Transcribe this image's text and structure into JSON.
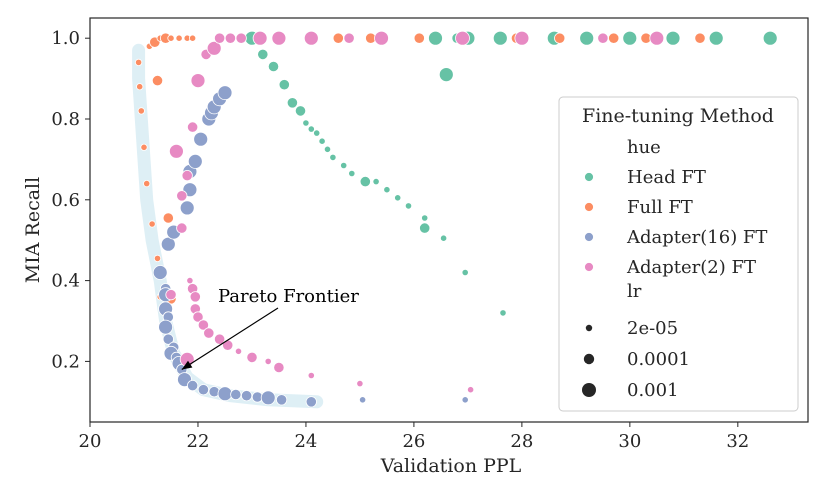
{
  "chart_data": {
    "type": "scatter",
    "title": "",
    "xlabel": "Validation PPL",
    "ylabel": "MIA Recall",
    "xlim": [
      20,
      33.3
    ],
    "ylim": [
      0.05,
      1.05
    ],
    "x_ticks": [
      20,
      22,
      24,
      26,
      28,
      30,
      32
    ],
    "y_ticks": [
      0.2,
      0.4,
      0.6,
      0.8,
      1.0
    ],
    "x_tick_labels": [
      "20",
      "22",
      "24",
      "26",
      "28",
      "30",
      "32"
    ],
    "y_tick_labels": [
      "0.2",
      "0.4",
      "0.6",
      "0.8",
      "1.0"
    ],
    "grid": false,
    "legend": {
      "title": "Fine-tuning Method",
      "position": "right",
      "hue_header": "hue",
      "size_header": "lr",
      "hue_entries": [
        {
          "label": "Head FT",
          "color": "#66c2a5"
        },
        {
          "label": "Full FT",
          "color": "#fc8d62"
        },
        {
          "label": "Adapter(16) FT",
          "color": "#8da0cb"
        },
        {
          "label": "Adapter(2) FT",
          "color": "#e78ac3"
        }
      ],
      "size_entries": [
        {
          "label": "2e-05",
          "lr": "2e-05"
        },
        {
          "label": "0.0001",
          "lr": "0.0001"
        },
        {
          "label": "0.001",
          "lr": "0.001"
        }
      ]
    },
    "annotation": {
      "text": "Pareto Frontier",
      "x": 21.7,
      "y": 0.18
    },
    "frontier": [
      [
        20.9,
        0.97
      ],
      [
        20.9,
        0.9
      ],
      [
        20.95,
        0.8
      ],
      [
        21.0,
        0.7
      ],
      [
        21.05,
        0.6
      ],
      [
        21.15,
        0.5
      ],
      [
        21.3,
        0.4
      ],
      [
        21.4,
        0.3
      ],
      [
        21.55,
        0.22
      ],
      [
        21.8,
        0.16
      ],
      [
        22.1,
        0.13
      ],
      [
        22.6,
        0.115
      ],
      [
        23.3,
        0.105
      ],
      [
        24.2,
        0.1
      ]
    ],
    "series": [
      {
        "name": "Head FT",
        "color": "#66c2a5",
        "points": [
          [
            23.0,
            1.0,
            "0.001"
          ],
          [
            23.2,
            0.96,
            "0.0001"
          ],
          [
            23.4,
            0.93,
            "0.0001"
          ],
          [
            23.6,
            0.885,
            "0.0001"
          ],
          [
            23.75,
            0.84,
            "0.0001"
          ],
          [
            23.9,
            0.82,
            "0.0001"
          ],
          [
            24.0,
            0.79,
            "2e-05"
          ],
          [
            24.1,
            0.775,
            "2e-05"
          ],
          [
            24.2,
            0.765,
            "2e-05"
          ],
          [
            24.3,
            0.745,
            "2e-05"
          ],
          [
            24.4,
            0.725,
            "2e-05"
          ],
          [
            24.5,
            0.705,
            "2e-05"
          ],
          [
            24.7,
            0.685,
            "2e-05"
          ],
          [
            24.85,
            0.665,
            "2e-05"
          ],
          [
            25.1,
            0.645,
            "0.0001"
          ],
          [
            25.3,
            0.645,
            "2e-05"
          ],
          [
            25.5,
            0.625,
            "2e-05"
          ],
          [
            25.7,
            0.605,
            "2e-05"
          ],
          [
            25.9,
            0.585,
            "2e-05"
          ],
          [
            26.2,
            0.555,
            "2e-05"
          ],
          [
            26.2,
            0.53,
            "0.0001"
          ],
          [
            26.55,
            0.505,
            "2e-05"
          ],
          [
            26.95,
            0.42,
            "2e-05"
          ],
          [
            27.65,
            0.32,
            "2e-05"
          ],
          [
            26.6,
            0.91,
            "0.001"
          ],
          [
            25.2,
            1.0,
            "0.0001"
          ],
          [
            26.4,
            1.0,
            "0.001"
          ],
          [
            26.8,
            1.0,
            "0.0001"
          ],
          [
            27.0,
            1.0,
            "0.001"
          ],
          [
            27.6,
            1.0,
            "0.001"
          ],
          [
            28.6,
            1.0,
            "0.001"
          ],
          [
            29.2,
            1.0,
            "0.001"
          ],
          [
            30.0,
            1.0,
            "0.001"
          ],
          [
            30.8,
            1.0,
            "0.001"
          ],
          [
            31.6,
            1.0,
            "0.001"
          ],
          [
            32.6,
            1.0,
            "0.001"
          ]
        ]
      },
      {
        "name": "Full FT",
        "color": "#fc8d62",
        "points": [
          [
            20.9,
            0.94,
            "2e-05"
          ],
          [
            20.92,
            0.88,
            "2e-05"
          ],
          [
            20.95,
            0.82,
            "2e-05"
          ],
          [
            21.0,
            0.73,
            "2e-05"
          ],
          [
            21.05,
            0.64,
            "2e-05"
          ],
          [
            21.15,
            0.54,
            "2e-05"
          ],
          [
            21.25,
            0.455,
            "2e-05"
          ],
          [
            21.3,
            0.36,
            "2e-05"
          ],
          [
            21.1,
            0.98,
            "2e-05"
          ],
          [
            21.2,
            0.99,
            "0.0001"
          ],
          [
            21.3,
            1.0,
            "2e-05"
          ],
          [
            21.4,
            1.0,
            "0.0001"
          ],
          [
            21.5,
            1.0,
            "2e-05"
          ],
          [
            21.65,
            1.0,
            "2e-05"
          ],
          [
            21.8,
            1.0,
            "2e-05"
          ],
          [
            21.9,
            1.0,
            "2e-05"
          ],
          [
            21.25,
            0.895,
            "0.0001"
          ],
          [
            21.45,
            0.555,
            "0.0001"
          ],
          [
            21.5,
            0.355,
            "0.0001"
          ],
          [
            24.6,
            1.0,
            "0.0001"
          ],
          [
            25.2,
            1.0,
            "0.0001"
          ],
          [
            26.1,
            1.0,
            "0.0001"
          ],
          [
            27.9,
            1.0,
            "0.0001"
          ],
          [
            28.7,
            1.0,
            "0.0001"
          ],
          [
            29.7,
            1.0,
            "0.0001"
          ],
          [
            30.3,
            1.0,
            "0.0001"
          ],
          [
            31.3,
            1.0,
            "0.0001"
          ]
        ]
      },
      {
        "name": "Adapter(16) FT",
        "color": "#8da0cb",
        "points": [
          [
            21.3,
            0.42,
            "0.001"
          ],
          [
            21.4,
            0.38,
            "0.0001"
          ],
          [
            21.4,
            0.365,
            "0.001"
          ],
          [
            21.4,
            0.33,
            "0.001"
          ],
          [
            21.45,
            0.31,
            "0.0001"
          ],
          [
            21.4,
            0.285,
            "0.001"
          ],
          [
            21.45,
            0.255,
            "0.0001"
          ],
          [
            21.55,
            0.235,
            "0.0001"
          ],
          [
            21.5,
            0.22,
            "0.001"
          ],
          [
            21.6,
            0.21,
            "0.0001"
          ],
          [
            21.65,
            0.195,
            "0.001"
          ],
          [
            21.7,
            0.18,
            "0.0001"
          ],
          [
            21.75,
            0.155,
            "0.001"
          ],
          [
            21.9,
            0.14,
            "0.0001"
          ],
          [
            22.1,
            0.13,
            "0.0001"
          ],
          [
            22.3,
            0.125,
            "0.0001"
          ],
          [
            22.5,
            0.12,
            "0.001"
          ],
          [
            22.7,
            0.118,
            "0.0001"
          ],
          [
            22.9,
            0.115,
            "0.0001"
          ],
          [
            23.1,
            0.112,
            "0.0001"
          ],
          [
            23.3,
            0.11,
            "0.001"
          ],
          [
            23.55,
            0.105,
            "0.0001"
          ],
          [
            24.1,
            0.1,
            "0.0001"
          ],
          [
            25.05,
            0.105,
            "2e-05"
          ],
          [
            26.95,
            0.105,
            "2e-05"
          ],
          [
            21.45,
            0.49,
            "0.001"
          ],
          [
            21.55,
            0.52,
            "0.001"
          ],
          [
            21.8,
            0.58,
            "0.001"
          ],
          [
            21.85,
            0.625,
            "0.001"
          ],
          [
            21.85,
            0.67,
            "0.001"
          ],
          [
            21.95,
            0.695,
            "0.001"
          ],
          [
            22.05,
            0.75,
            "0.001"
          ],
          [
            22.2,
            0.8,
            "0.001"
          ],
          [
            22.25,
            0.815,
            "0.001"
          ],
          [
            22.3,
            0.83,
            "0.001"
          ],
          [
            22.4,
            0.85,
            "0.001"
          ],
          [
            22.5,
            0.865,
            "0.001"
          ]
        ]
      },
      {
        "name": "Adapter(2) FT",
        "color": "#e78ac3",
        "points": [
          [
            21.5,
            0.365,
            "0.0001"
          ],
          [
            21.6,
            0.72,
            "0.001"
          ],
          [
            21.7,
            0.53,
            "0.0001"
          ],
          [
            21.7,
            0.61,
            "0.0001"
          ],
          [
            21.8,
            0.66,
            "0.0001"
          ],
          [
            21.85,
            0.4,
            "2e-05"
          ],
          [
            21.9,
            0.38,
            "0.0001"
          ],
          [
            21.95,
            0.36,
            "0.0001"
          ],
          [
            21.95,
            0.33,
            "0.0001"
          ],
          [
            22.0,
            0.31,
            "0.0001"
          ],
          [
            22.1,
            0.29,
            "0.0001"
          ],
          [
            22.2,
            0.27,
            "0.0001"
          ],
          [
            22.4,
            0.255,
            "0.0001"
          ],
          [
            22.55,
            0.24,
            "0.0001"
          ],
          [
            22.75,
            0.225,
            "2e-05"
          ],
          [
            23.0,
            0.21,
            "0.0001"
          ],
          [
            23.3,
            0.2,
            "2e-05"
          ],
          [
            23.5,
            0.185,
            "0.0001"
          ],
          [
            21.8,
            0.205,
            "0.001"
          ],
          [
            24.1,
            0.165,
            "2e-05"
          ],
          [
            25.0,
            0.145,
            "2e-05"
          ],
          [
            27.05,
            0.13,
            "2e-05"
          ],
          [
            21.9,
            0.78,
            "0.0001"
          ],
          [
            22.0,
            0.895,
            "0.001"
          ],
          [
            22.15,
            0.96,
            "0.0001"
          ],
          [
            22.3,
            0.975,
            "0.001"
          ],
          [
            22.4,
            1.0,
            "0.0001"
          ],
          [
            22.6,
            1.0,
            "0.0001"
          ],
          [
            22.8,
            1.0,
            "0.0001"
          ],
          [
            23.15,
            1.0,
            "0.001"
          ],
          [
            23.5,
            1.0,
            "0.001"
          ],
          [
            24.1,
            1.0,
            "0.001"
          ],
          [
            24.8,
            1.0,
            "0.0001"
          ],
          [
            25.4,
            1.0,
            "0.001"
          ],
          [
            26.9,
            1.0,
            "0.001"
          ],
          [
            28.0,
            1.0,
            "0.001"
          ],
          [
            29.5,
            1.0,
            "0.0001"
          ],
          [
            30.5,
            1.0,
            "0.001"
          ]
        ]
      }
    ]
  }
}
